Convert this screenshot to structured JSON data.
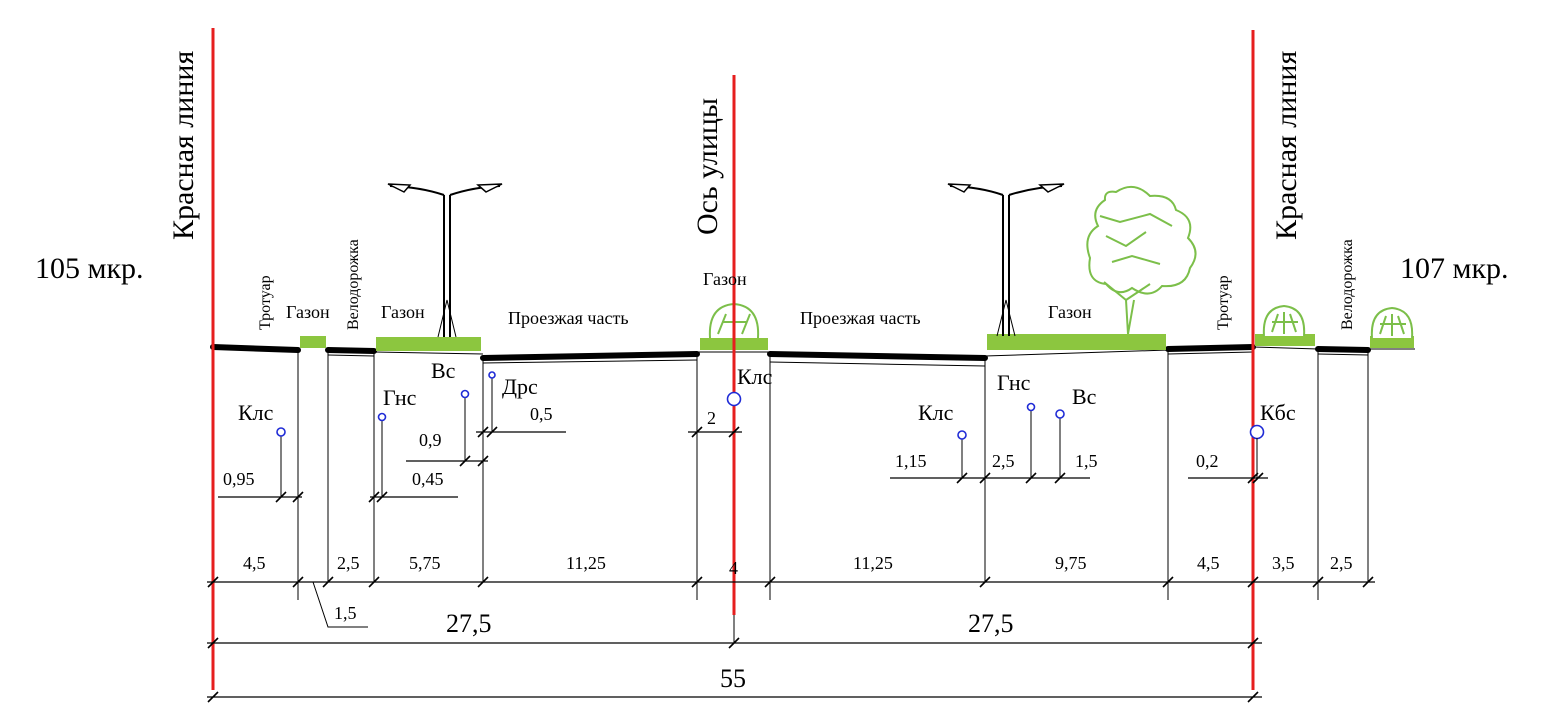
{
  "districts": {
    "left": "105 мкр.",
    "right": "107 мкр."
  },
  "vertical_labels": {
    "red_line_left": "Красная линия",
    "axis": "Ось улицы",
    "red_line_right": "Красная линия",
    "sidewalk_left": "Тротуар",
    "bikeway_left": "Велодорожка",
    "sidewalk_right": "Тротуар",
    "bikeway_right": "Велодорожка"
  },
  "zone_labels": {
    "lawn_1": "Газон",
    "lawn_2": "Газон",
    "roadway_left": "Проезжая часть",
    "lawn_median": "Газон",
    "roadway_right": "Проезжая часть",
    "lawn_right": "Газон"
  },
  "utilities": {
    "kls_left": "Клс",
    "gns_left": "Гнс",
    "vs_left": "Вс",
    "drs": "Дрс",
    "kls_center": "Клс",
    "kls_right": "Клс",
    "gns_right": "Гнс",
    "vs_right": "Вс",
    "kbs": "Кбс"
  },
  "utility_offsets": {
    "kls_left": "0,95",
    "gns_left": "0,45",
    "vs_left": "0,9",
    "drs": "0,5",
    "kls_center": "2",
    "kls_right": "1,15",
    "gns_right": "2,5",
    "vs_right": "1,5",
    "kbs": "0,2"
  },
  "segment_widths": [
    "4,5",
    "1,5",
    "2,5",
    "5,75",
    "11,25",
    "4",
    "11,25",
    "9,75",
    "4,5",
    "3,5",
    "2,5"
  ],
  "half_widths": [
    "27,5",
    "27,5"
  ],
  "total_width": "55"
}
